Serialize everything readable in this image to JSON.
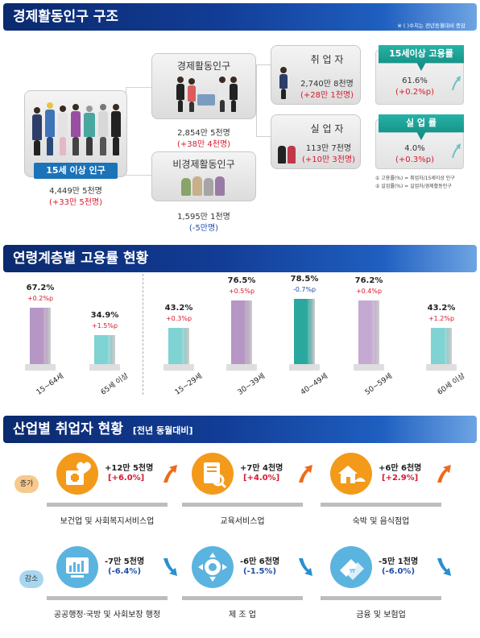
{
  "s1": {
    "title": "경제활동인구 구조",
    "note": "※ ( )수치는 전년동월대비 증감",
    "pop15": {
      "label": "15세 이상 인구",
      "value": "4,449만 5천명",
      "delta": "(+33만 5천명)"
    },
    "active": {
      "label": "경제활동인구",
      "value": "2,854만 5천명",
      "delta": "(+38만 4천명)"
    },
    "inactive": {
      "label": "비경제활동인구",
      "value": "1,595만 1천명",
      "delta": "(-5만명)"
    },
    "employed": {
      "label": "취 업 자",
      "value": "2,740만 8천명",
      "delta": "(+28만 1천명)"
    },
    "unemployed": {
      "label": "실 업 자",
      "value": "113만 7천명",
      "delta": "(+10만 3천명)"
    },
    "emp_rate": {
      "label": "15세이상 고용률",
      "value": "61.6%",
      "delta": "(+0.2%p)"
    },
    "unemp_rate": {
      "label": "실 업 률",
      "value": "4.0%",
      "delta": "(+0.3%p)"
    },
    "footnote1": "① 고용률(%) = 취업자/15세이상 인구",
    "footnote2": "② 실업률(%) = 실업자/경제활동인구"
  },
  "s2": {
    "title": "연령계층별 고용률 현황"
  },
  "chart_data": {
    "type": "bar",
    "title": "연령계층별 고용률 현황",
    "categories": [
      "15~64세",
      "65세 이상",
      "15~29세",
      "30~39세",
      "40~49세",
      "50~59세",
      "60세 이상"
    ],
    "values": [
      67.2,
      34.9,
      43.2,
      76.5,
      78.5,
      76.2,
      43.2
    ],
    "value_labels": [
      "67.2%",
      "34.9%",
      "43.2%",
      "76.5%",
      "78.5%",
      "76.2%",
      "43.2%"
    ],
    "deltas": [
      "+0.2%p",
      "+1.5%p",
      "+0.3%p",
      "+0.5%p",
      "-0.7%p",
      "+0.4%p",
      "+1.2%p"
    ],
    "colors": [
      "#b596c4",
      "#7fd3d3",
      "#7fd3d3",
      "#b596c4",
      "#2aa89e",
      "#c5a9d3",
      "#7fd3d3"
    ],
    "delta_colors": [
      "#d8182c",
      "#d8182c",
      "#d8182c",
      "#d8182c",
      "#1f4ea8",
      "#d8182c",
      "#d8182c"
    ]
  },
  "s3": {
    "title": "산업별 취업자 현황",
    "subtitle": "[전년 동월대비]",
    "increase_label": "증가",
    "decrease_label": "감소",
    "increase": [
      {
        "name": "보건업 및 사회복지서비스업",
        "value": "+12만 5천명",
        "delta": "[+6.0%]",
        "icon": "healthcare-icon"
      },
      {
        "name": "교육서비스업",
        "value": "+7만 4천명",
        "delta": "[+4.0%]",
        "icon": "education-icon"
      },
      {
        "name": "숙박 및 음식점업",
        "value": "+6만 6천명",
        "delta": "[+2.9%]",
        "icon": "lodging-icon"
      }
    ],
    "decrease": [
      {
        "name": "공공행정·국방 및 사회보장 행정",
        "value": "-7만 5천명",
        "delta": "(-6.4%)",
        "icon": "public-admin-icon"
      },
      {
        "name": "제 조 업",
        "value": "-6만 6천명",
        "delta": "(-1.5%)",
        "icon": "manufacturing-icon"
      },
      {
        "name": "금융 및 보험업",
        "value": "-5만 1천명",
        "delta": "(-6.0%)",
        "icon": "finance-icon"
      }
    ]
  },
  "colors": {
    "header_dark": "#0b2a6e",
    "teal": "#1a9b92",
    "orange": "#f39a1a",
    "blue_icon": "#5bb4e0",
    "red": "#d8182c",
    "blue": "#1f4ea8"
  }
}
